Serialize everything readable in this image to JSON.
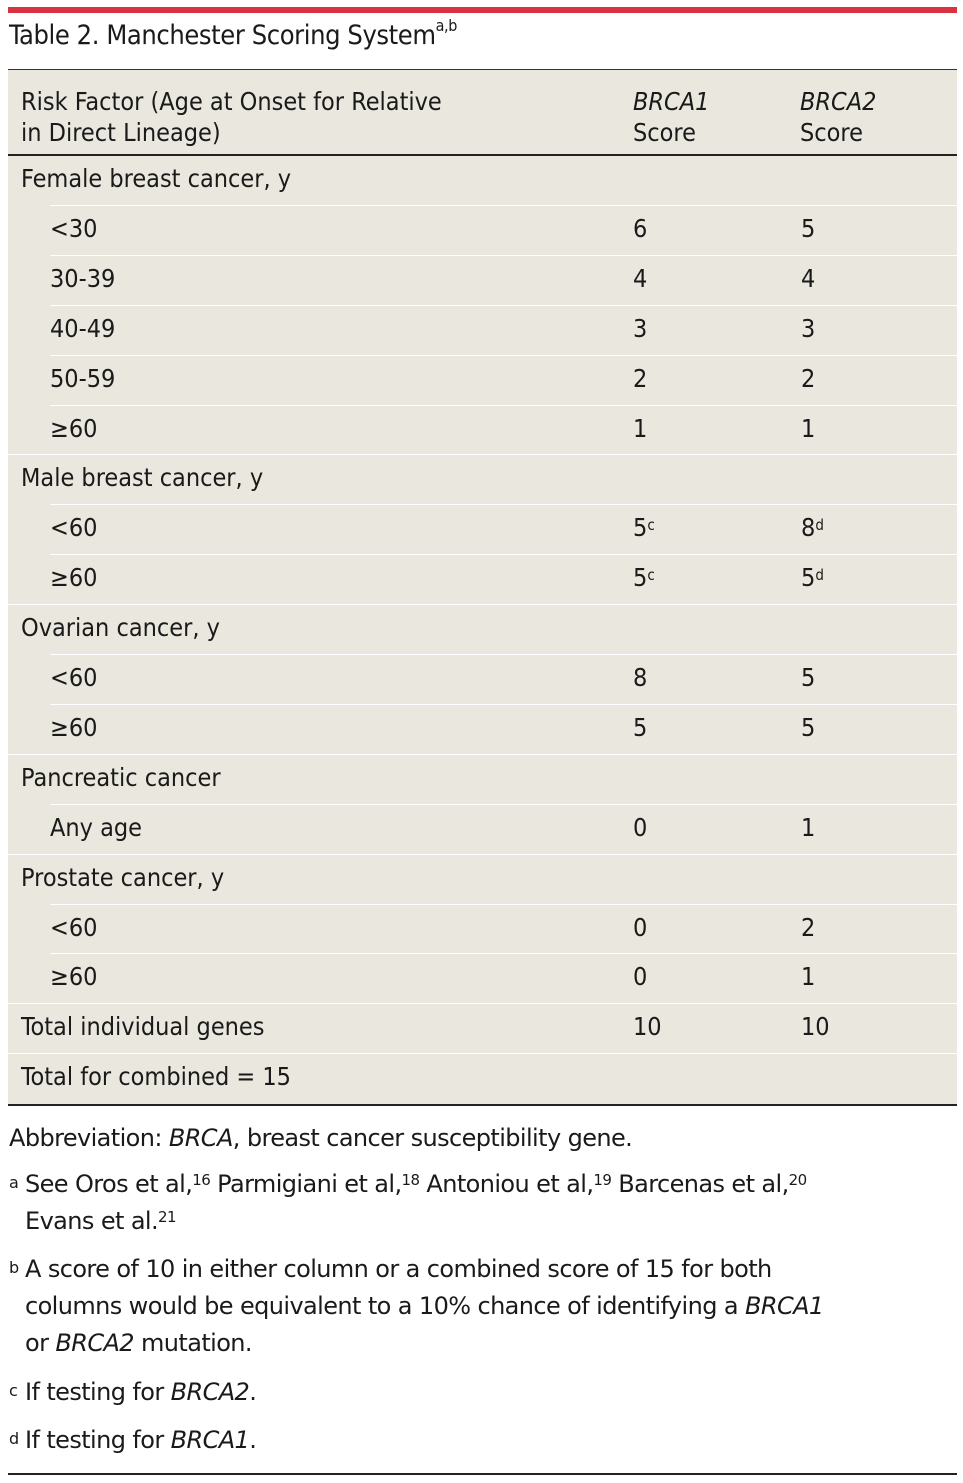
{
  "title": "Table 2. Manchester Scoring System",
  "title_refs": "a,b",
  "header": {
    "col1_line1": "Risk Factor (Age at Onset for Relative",
    "col1_line2": "in Direct Lineage)",
    "col2_gene": "BRCA1",
    "col2_word": "Score",
    "col3_gene": "BRCA2",
    "col3_word": "Score"
  },
  "rows": [
    {
      "label": "Female breast cancer, y",
      "v1": "",
      "v1_ref": "",
      "v2": "",
      "v2_ref": ""
    },
    {
      "label": "<30",
      "v1": "6",
      "v1_ref": "",
      "v2": "5",
      "v2_ref": ""
    },
    {
      "label": "30-39",
      "v1": "4",
      "v1_ref": "",
      "v2": "4",
      "v2_ref": ""
    },
    {
      "label": "40-49",
      "v1": "3",
      "v1_ref": "",
      "v2": "3",
      "v2_ref": ""
    },
    {
      "label": "50-59",
      "v1": "2",
      "v1_ref": "",
      "v2": "2",
      "v2_ref": ""
    },
    {
      "label": "≥60",
      "v1": "1",
      "v1_ref": "",
      "v2": "1",
      "v2_ref": ""
    },
    {
      "label": "Male breast cancer, y",
      "v1": "",
      "v1_ref": "",
      "v2": "",
      "v2_ref": ""
    },
    {
      "label": "<60",
      "v1": "5",
      "v1_ref": "c",
      "v2": "8",
      "v2_ref": "d"
    },
    {
      "label": "≥60",
      "v1": "5",
      "v1_ref": "c",
      "v2": "5",
      "v2_ref": "d"
    },
    {
      "label": "Ovarian cancer, y",
      "v1": "",
      "v1_ref": "",
      "v2": "",
      "v2_ref": ""
    },
    {
      "label": "<60",
      "v1": "8",
      "v1_ref": "",
      "v2": "5",
      "v2_ref": ""
    },
    {
      "label": "≥60",
      "v1": "5",
      "v1_ref": "",
      "v2": "5",
      "v2_ref": ""
    },
    {
      "label": "Pancreatic cancer",
      "v1": "",
      "v1_ref": "",
      "v2": "",
      "v2_ref": ""
    },
    {
      "label": "Any age",
      "v1": "0",
      "v1_ref": "",
      "v2": "1",
      "v2_ref": ""
    },
    {
      "label": "Prostate cancer, y",
      "v1": "",
      "v1_ref": "",
      "v2": "",
      "v2_ref": ""
    },
    {
      "label": "<60",
      "v1": "0",
      "v1_ref": "",
      "v2": "2",
      "v2_ref": ""
    },
    {
      "label": "≥60",
      "v1": "0",
      "v1_ref": "",
      "v2": "1",
      "v2_ref": ""
    },
    {
      "label": "Total individual genes",
      "v1": "10",
      "v1_ref": "",
      "v2": "10",
      "v2_ref": ""
    },
    {
      "label": "Total for combined = 15",
      "v1": "",
      "v1_ref": "",
      "v2": "",
      "v2_ref": ""
    }
  ],
  "notes": {
    "abbrev_prefix": "Abbreviation: ",
    "abbrev_term": "BRCA",
    "abbrev_rest": ", breast cancer susceptibility gene.",
    "a_mark": "a",
    "a_1": "See Oros et al,",
    "a_1_ref": "16",
    "a_2": " Parmigiani et al,",
    "a_2_ref": "18",
    "a_3": " Antoniou et al,",
    "a_3_ref": "19",
    "a_4": " Barcenas et al,",
    "a_4_ref": "20",
    "a_5": "Evans et al.",
    "a_5_ref": "21",
    "b_mark": "b",
    "b_line1": "A score of 10 in either column or a combined score of 15 for both",
    "b_line2_pre": "columns would be equivalent to a 10% chance of identifying a ",
    "b_line2_gene": "BRCA1",
    "b_line3_pre": "or ",
    "b_line3_gene": "BRCA2",
    "b_line3_post": " mutation.",
    "c_mark": "c",
    "c_pre": "If testing for ",
    "c_gene": "BRCA2",
    "c_post": ".",
    "d_mark": "d",
    "d_pre": "If testing for ",
    "d_gene": "BRCA1",
    "d_post": "."
  },
  "colors": {
    "accent_bar": "#d9333f",
    "table_bg": "#eae7de"
  }
}
